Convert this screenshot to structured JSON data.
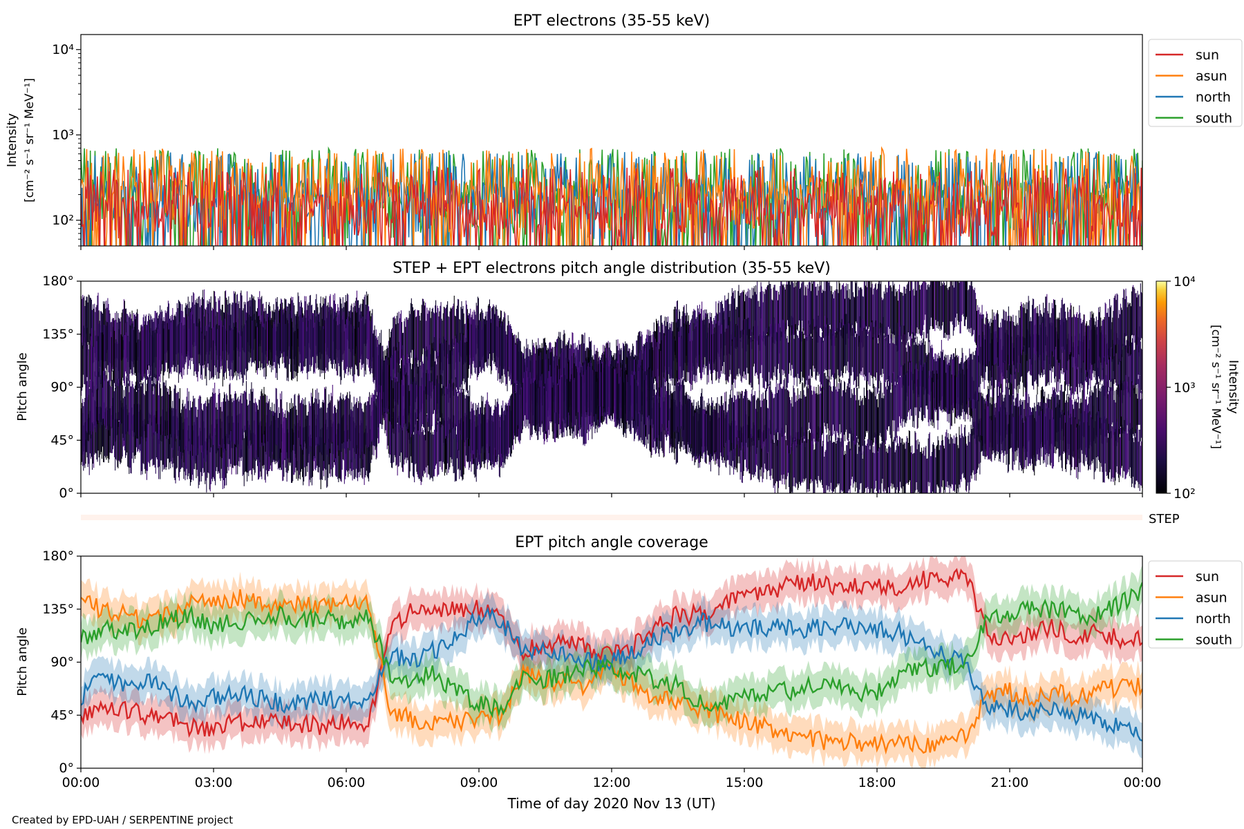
{
  "credit": "Created by EPD-UAH / SERPENTINE project",
  "chart_data": [
    {
      "type": "line",
      "title": "EPT electrons (35-55 keV)",
      "ylabel": [
        "Intensity",
        "[cm⁻² s⁻¹ sr⁻¹ MeV⁻¹]"
      ],
      "yscale": "log",
      "ylim": [
        50,
        15000
      ],
      "yticks": [
        {
          "value": 100,
          "label": "10²"
        },
        {
          "value": 1000,
          "label": "10³"
        },
        {
          "value": 10000,
          "label": "10⁴"
        }
      ],
      "xlim": [
        "00:00",
        "24:00"
      ],
      "legend": "outside-right-top",
      "series": [
        {
          "name": "sun",
          "color": "#d62728",
          "level_range": [
            60,
            300
          ]
        },
        {
          "name": "asun",
          "color": "#ff7f0e",
          "level_range": [
            70,
            500
          ]
        },
        {
          "name": "north",
          "color": "#1f77b4",
          "level_range": [
            60,
            450
          ]
        },
        {
          "name": "south",
          "color": "#2ca02c",
          "level_range": [
            60,
            500
          ]
        }
      ]
    },
    {
      "type": "heatmap",
      "title": "STEP + EPT electrons pitch angle distribution (35-55 keV)",
      "ylabel": "Pitch angle",
      "ylim": [
        0,
        180
      ],
      "yticks": [
        "0°",
        "45°",
        "90°",
        "135°",
        "180°"
      ],
      "colorbar": {
        "label": "Intensity",
        "units": "[cm⁻² s⁻¹ sr⁻¹ MeV⁻¹]",
        "ticks": [
          "10²",
          "10³",
          "10⁴"
        ],
        "range": [
          100,
          10000
        ],
        "colormap": "inferno"
      },
      "step_label": "STEP",
      "bands_ref": "pitch_angle_coverage"
    },
    {
      "type": "line",
      "title": "EPT pitch angle coverage",
      "ylabel": "Pitch angle",
      "xlabel": "Time of day 2020 Nov 13 (UT)",
      "ylim": [
        0,
        180
      ],
      "yticks": [
        "0°",
        "45°",
        "90°",
        "135°",
        "180°"
      ],
      "xticks": [
        "00:00",
        "03:00",
        "06:00",
        "09:00",
        "12:00",
        "15:00",
        "18:00",
        "21:00",
        "00:00"
      ],
      "legend": "outside-right-top",
      "band_halfwidth_deg": 15,
      "x_hours": [
        0,
        0.5,
        1,
        1.5,
        2,
        2.5,
        3,
        3.5,
        4,
        4.5,
        5,
        5.5,
        6,
        6.5,
        7,
        7.5,
        8,
        8.5,
        9,
        9.5,
        10,
        10.5,
        11,
        11.5,
        12,
        12.5,
        13,
        13.5,
        14,
        14.5,
        15,
        15.5,
        16,
        16.5,
        17,
        17.5,
        18,
        18.5,
        19,
        19.5,
        20,
        20.5,
        21,
        21.5,
        22,
        22.5,
        23,
        23.5,
        24
      ],
      "series": [
        {
          "name": "sun",
          "color": "#d62728",
          "values": [
            40,
            55,
            50,
            45,
            42,
            35,
            35,
            38,
            40,
            38,
            37,
            36,
            40,
            35,
            120,
            135,
            133,
            135,
            135,
            130,
            100,
            105,
            110,
            100,
            95,
            105,
            120,
            130,
            130,
            140,
            145,
            150,
            155,
            158,
            155,
            155,
            155,
            150,
            160,
            160,
            165,
            115,
            110,
            115,
            120,
            110,
            115,
            110,
            110
          ]
        },
        {
          "name": "asun",
          "color": "#ff7f0e",
          "values": [
            140,
            135,
            130,
            125,
            130,
            140,
            140,
            145,
            140,
            135,
            140,
            138,
            145,
            140,
            50,
            40,
            38,
            40,
            40,
            45,
            80,
            75,
            72,
            70,
            85,
            70,
            60,
            55,
            50,
            45,
            40,
            35,
            30,
            25,
            22,
            22,
            20,
            20,
            20,
            20,
            30,
            60,
            65,
            60,
            65,
            60,
            65,
            70,
            70
          ]
        },
        {
          "name": "north",
          "color": "#1f77b4",
          "values": [
            60,
            80,
            70,
            75,
            65,
            55,
            60,
            65,
            60,
            55,
            55,
            58,
            60,
            55,
            95,
            90,
            100,
            110,
            130,
            125,
            100,
            100,
            95,
            90,
            90,
            100,
            110,
            115,
            125,
            120,
            120,
            120,
            118,
            118,
            120,
            120,
            118,
            115,
            105,
            95,
            90,
            50,
            50,
            45,
            50,
            45,
            40,
            35,
            30
          ]
        },
        {
          "name": "south",
          "color": "#2ca02c",
          "values": [
            110,
            120,
            115,
            120,
            125,
            130,
            120,
            125,
            125,
            130,
            125,
            128,
            125,
            130,
            80,
            75,
            80,
            65,
            55,
            50,
            80,
            75,
            80,
            85,
            85,
            80,
            75,
            70,
            55,
            55,
            60,
            65,
            65,
            70,
            70,
            65,
            65,
            80,
            85,
            85,
            88,
            130,
            130,
            135,
            135,
            130,
            130,
            140,
            150
          ]
        }
      ]
    }
  ]
}
